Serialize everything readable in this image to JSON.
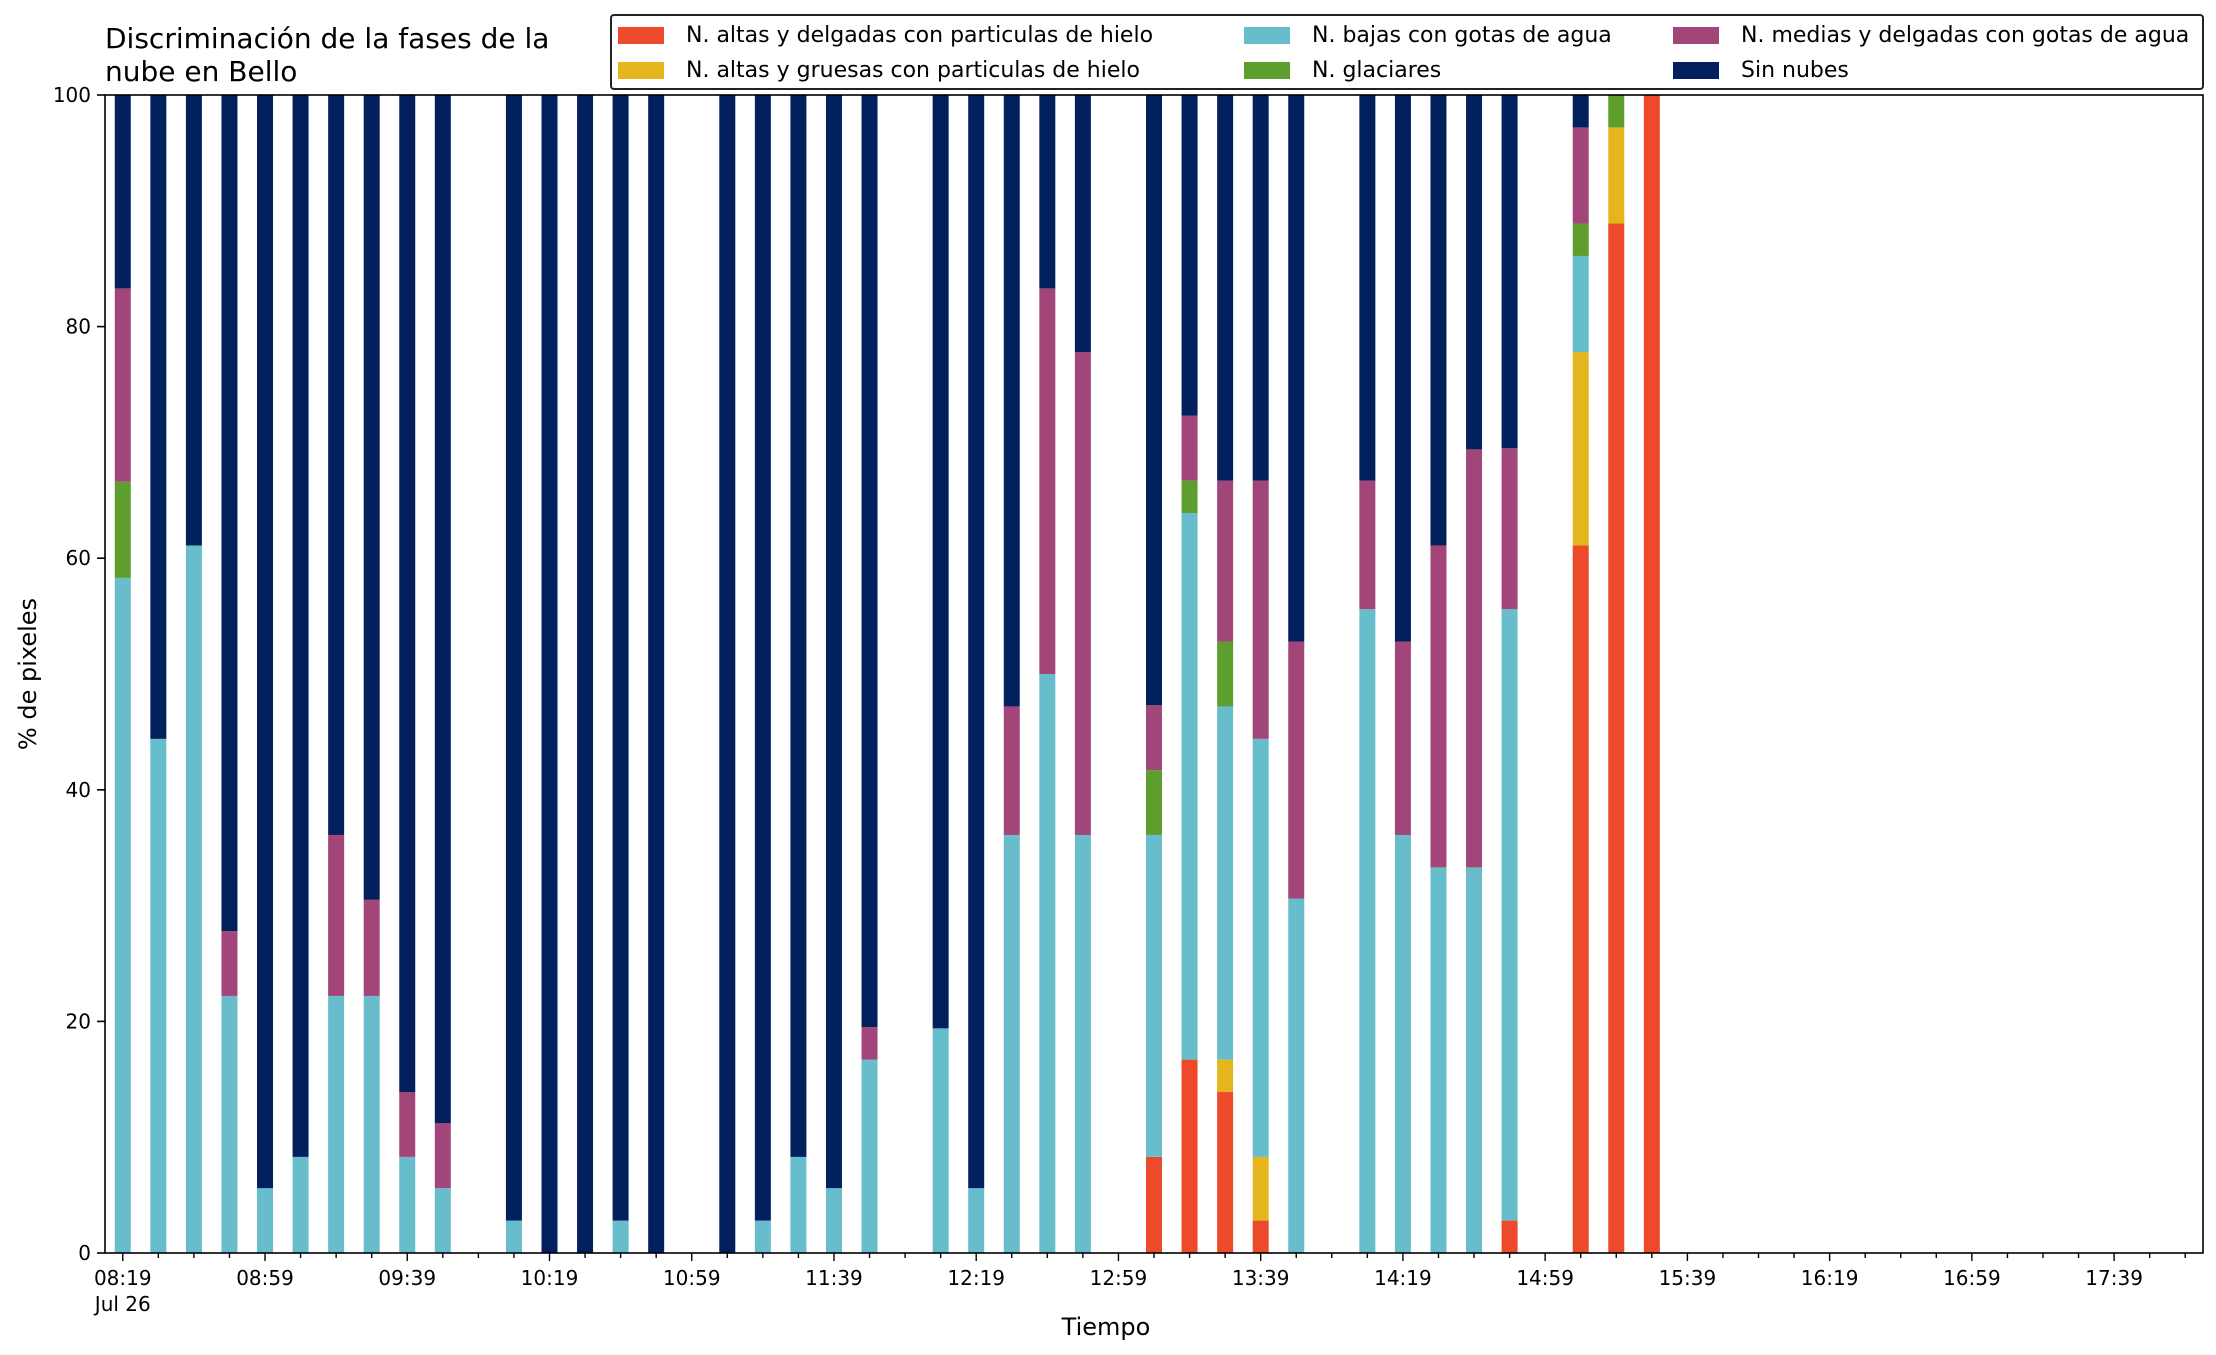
{
  "chart_data": {
    "type": "bar",
    "stacked": true,
    "title_lines": [
      "Discriminación de la fases de la",
      "nube en Bello"
    ],
    "xlabel": "Tiempo",
    "ylabel": "% de pixeles",
    "ylim": [
      0,
      100
    ],
    "yticks": [
      0,
      20,
      40,
      60,
      80,
      100
    ],
    "x_major_ticks": [
      "08:19",
      "08:59",
      "09:39",
      "10:19",
      "10:59",
      "11:39",
      "12:19",
      "12:59",
      "13:39",
      "14:19",
      "14:59",
      "15:39",
      "16:19",
      "16:59",
      "17:39"
    ],
    "x_date_label": "Jul 26",
    "x_range_slots": [
      -0.5,
      58.5
    ],
    "legend_position": "top-right",
    "grid": false,
    "series": [
      {
        "name": "N. altas y delgadas con particulas de hielo",
        "color": "#ec4a2a"
      },
      {
        "name": "N. altas y gruesas con particulas de hielo",
        "color": "#e5b51e"
      },
      {
        "name": "N. bajas con gotas de agua",
        "color": "#67bdcb"
      },
      {
        "name": "N. glaciares",
        "color": "#5e9e2f"
      },
      {
        "name": "N. medias y delgadas con gotas de agua",
        "color": "#a24578"
      },
      {
        "name": "Sin nubes",
        "color": "#03205e"
      }
    ],
    "bars": [
      {
        "time": "08:19",
        "values": [
          0,
          0,
          58.3,
          8.3,
          16.7,
          16.7
        ]
      },
      {
        "time": "08:29",
        "values": [
          0,
          0,
          44.4,
          0,
          0,
          55.6
        ]
      },
      {
        "time": "08:39",
        "values": [
          0,
          0,
          61.1,
          0,
          0,
          38.9
        ]
      },
      {
        "time": "08:49",
        "values": [
          0,
          0,
          22.2,
          0,
          5.6,
          72.2
        ]
      },
      {
        "time": "08:59",
        "values": [
          0,
          0,
          5.6,
          0,
          0,
          94.4
        ]
      },
      {
        "time": "09:09",
        "values": [
          0,
          0,
          8.3,
          0,
          0,
          91.7
        ]
      },
      {
        "time": "09:19",
        "values": [
          0,
          0,
          22.2,
          0,
          13.9,
          63.9
        ]
      },
      {
        "time": "09:29",
        "values": [
          0,
          0,
          22.2,
          0,
          8.3,
          69.5
        ]
      },
      {
        "time": "09:39",
        "values": [
          0,
          0,
          8.3,
          0,
          5.6,
          86.1
        ]
      },
      {
        "time": "09:49",
        "values": [
          0,
          0,
          5.6,
          0,
          5.6,
          88.8
        ]
      },
      {
        "time": "10:09",
        "values": [
          0,
          0,
          2.8,
          0,
          0,
          97.2
        ]
      },
      {
        "time": "10:19",
        "values": [
          0,
          0,
          0,
          0,
          0,
          100
        ]
      },
      {
        "time": "10:29",
        "values": [
          0,
          0,
          0,
          0,
          0,
          100
        ]
      },
      {
        "time": "10:39",
        "values": [
          0,
          0,
          2.8,
          0,
          0,
          97.2
        ]
      },
      {
        "time": "10:49",
        "values": [
          0,
          0,
          0,
          0,
          0,
          100
        ]
      },
      {
        "time": "11:09",
        "values": [
          0,
          0,
          0,
          0,
          0,
          100
        ]
      },
      {
        "time": "11:19",
        "values": [
          0,
          0,
          2.8,
          0,
          0,
          97.2
        ]
      },
      {
        "time": "11:29",
        "values": [
          0,
          0,
          8.3,
          0,
          0,
          91.7
        ]
      },
      {
        "time": "11:39",
        "values": [
          0,
          0,
          5.6,
          0,
          0,
          94.4
        ]
      },
      {
        "time": "11:49",
        "values": [
          0,
          0,
          16.7,
          0,
          2.8,
          80.5
        ]
      },
      {
        "time": "12:09",
        "values": [
          0,
          0,
          19.4,
          0,
          0,
          80.6
        ]
      },
      {
        "time": "12:19",
        "values": [
          0,
          0,
          5.6,
          0,
          0,
          94.4
        ]
      },
      {
        "time": "12:29",
        "values": [
          0,
          0,
          36.1,
          0,
          11.1,
          52.8
        ]
      },
      {
        "time": "12:39",
        "values": [
          0,
          0,
          50.0,
          0,
          33.3,
          16.7
        ]
      },
      {
        "time": "12:49",
        "values": [
          0,
          0,
          36.1,
          0,
          41.7,
          22.2
        ]
      },
      {
        "time": "13:09",
        "values": [
          8.3,
          0,
          27.8,
          5.6,
          5.6,
          52.7
        ]
      },
      {
        "time": "13:19",
        "values": [
          16.7,
          0,
          47.2,
          2.8,
          5.6,
          27.7
        ]
      },
      {
        "time": "13:29",
        "values": [
          13.9,
          2.8,
          30.5,
          5.6,
          13.9,
          33.3
        ]
      },
      {
        "time": "13:39",
        "values": [
          2.8,
          5.5,
          36.1,
          0,
          22.3,
          33.3
        ]
      },
      {
        "time": "13:49",
        "values": [
          0,
          0,
          30.6,
          0,
          22.2,
          47.2
        ]
      },
      {
        "time": "14:09",
        "values": [
          0,
          0,
          55.6,
          0,
          11.1,
          33.3
        ]
      },
      {
        "time": "14:19",
        "values": [
          0,
          0,
          36.1,
          0,
          16.7,
          47.2
        ]
      },
      {
        "time": "14:29",
        "values": [
          0,
          0,
          33.3,
          0,
          27.8,
          38.9
        ]
      },
      {
        "time": "14:39",
        "values": [
          0,
          0,
          33.3,
          0,
          36.1,
          30.6
        ]
      },
      {
        "time": "14:49",
        "values": [
          2.8,
          0,
          52.8,
          0,
          13.9,
          30.5
        ]
      },
      {
        "time": "15:09",
        "values": [
          61.1,
          16.7,
          8.3,
          2.8,
          8.3,
          2.8
        ]
      },
      {
        "time": "15:19",
        "values": [
          88.9,
          8.3,
          0,
          2.8,
          0,
          0
        ]
      },
      {
        "time": "15:29",
        "values": [
          100,
          0,
          0,
          0,
          0,
          0
        ]
      }
    ]
  }
}
